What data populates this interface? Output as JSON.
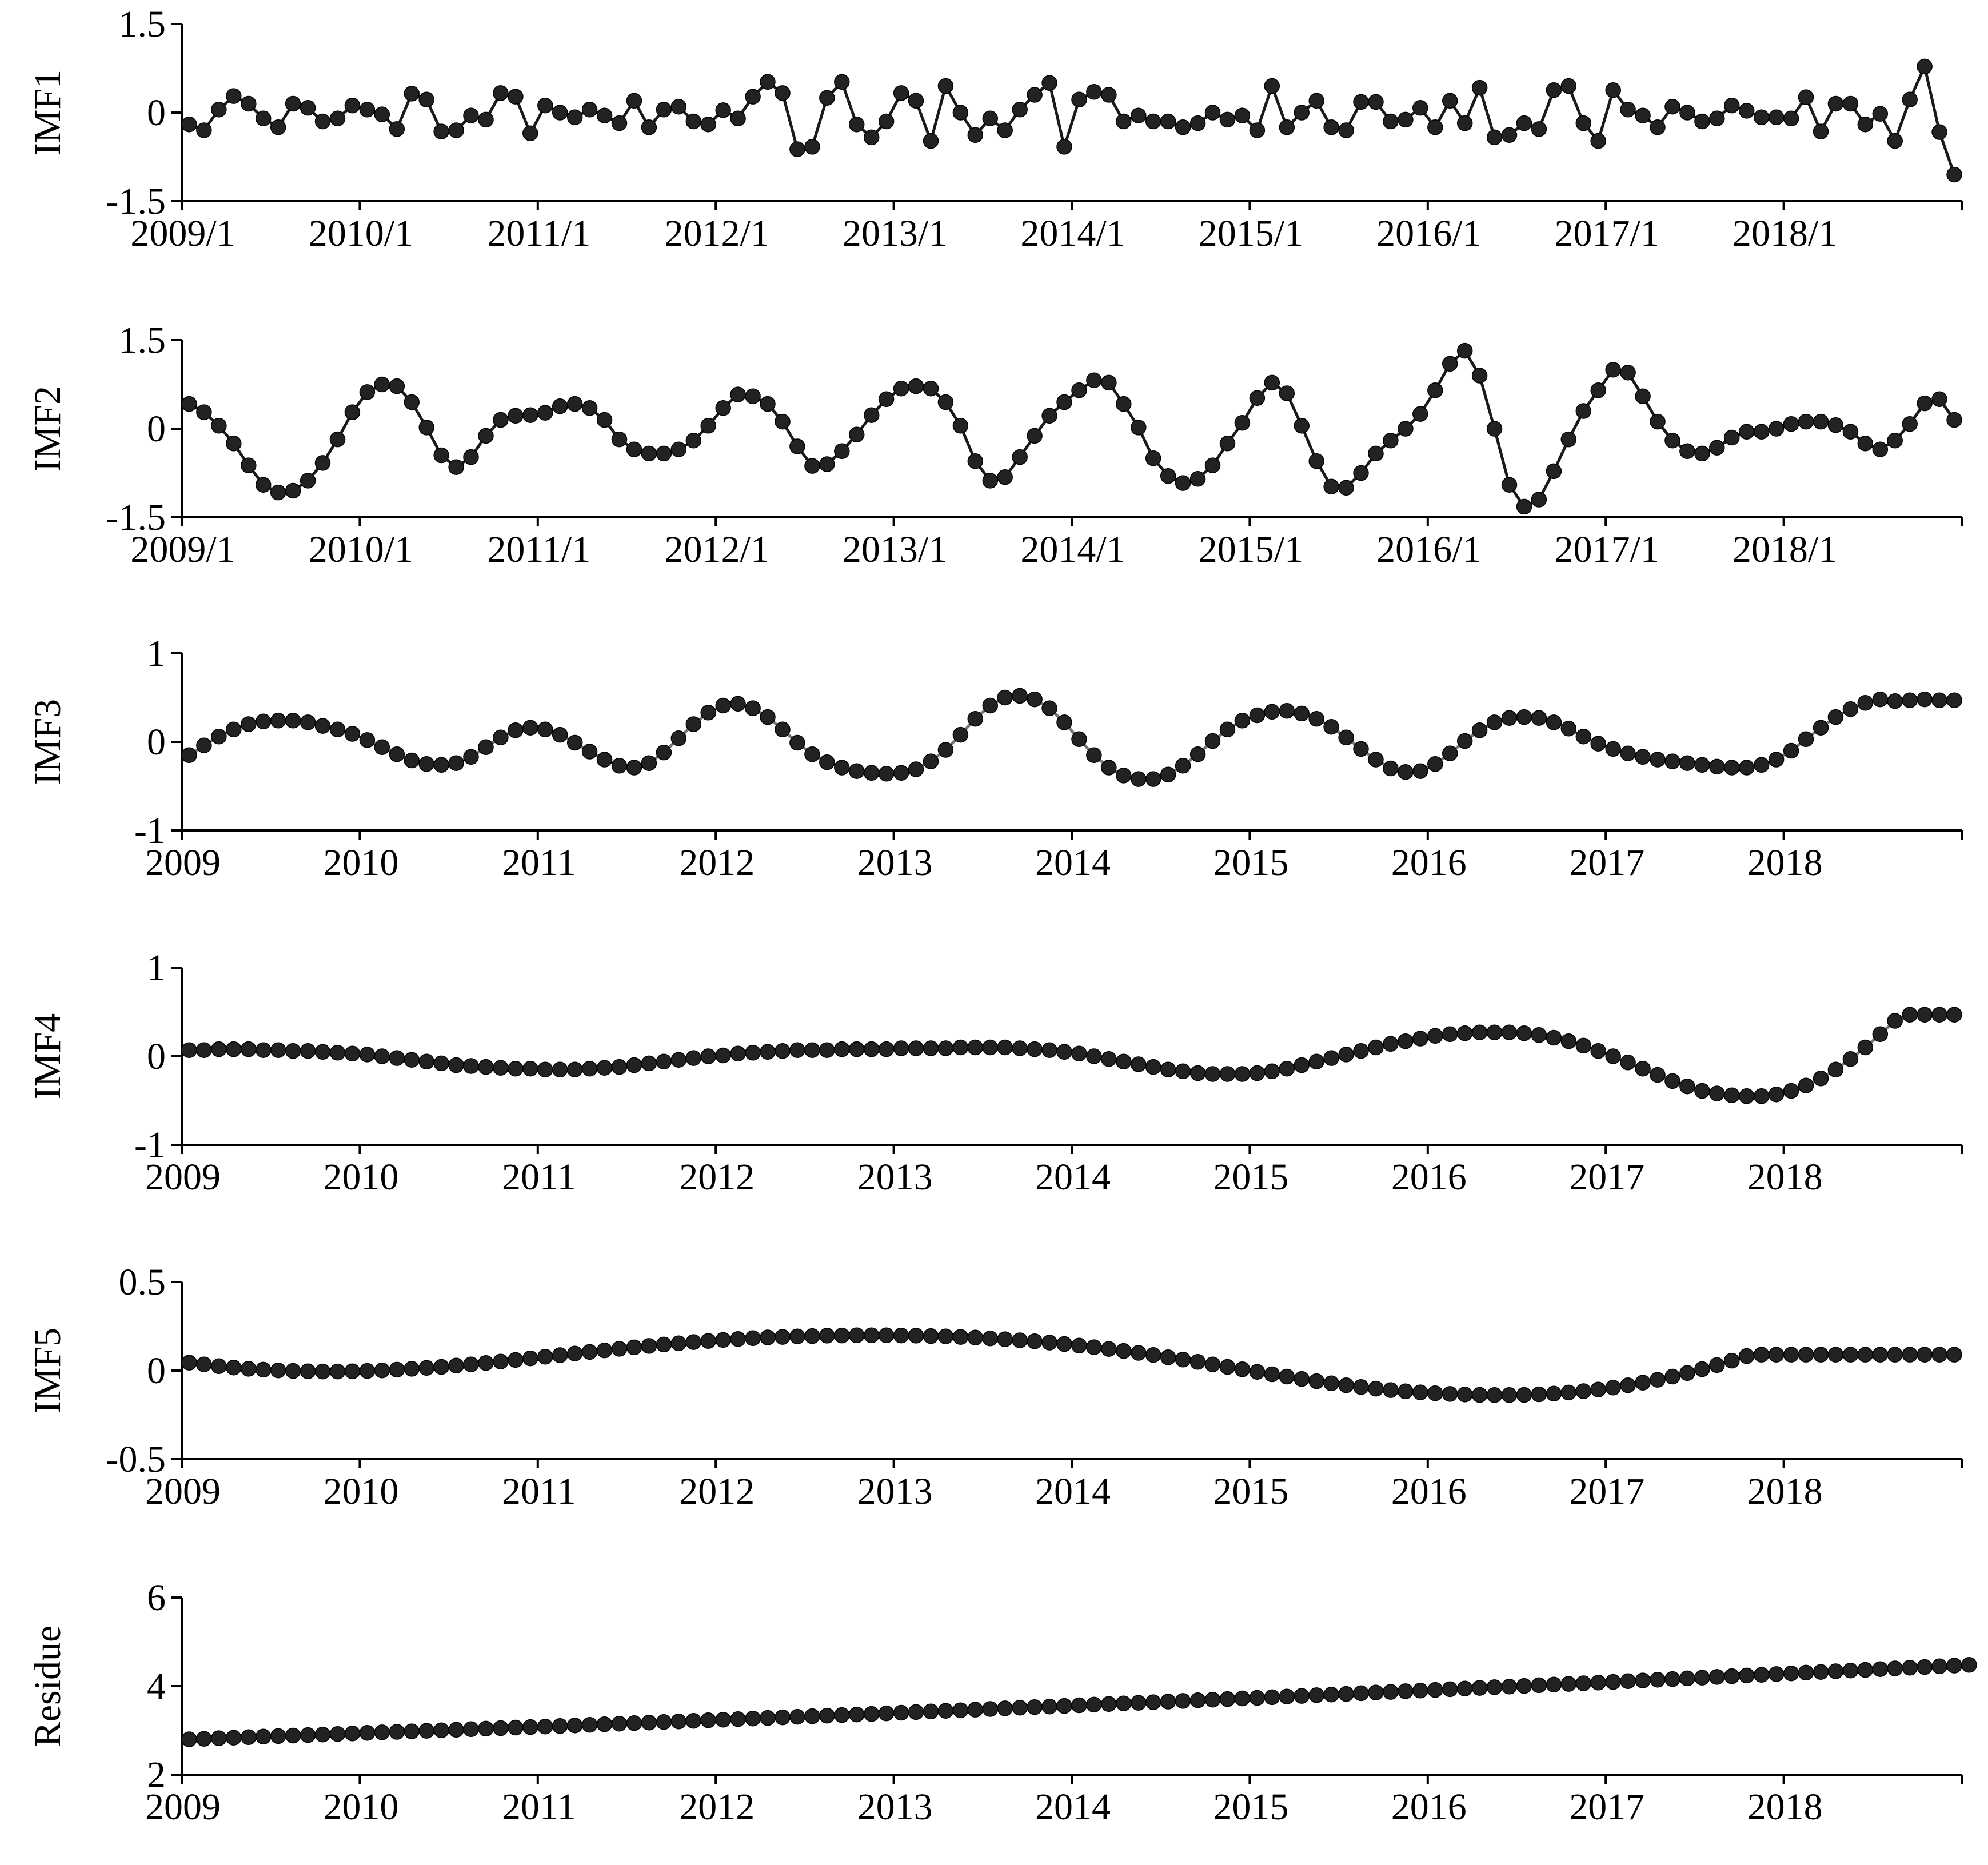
{
  "chart_data": [
    {
      "type": "line",
      "ylabel": "IMF1",
      "ylim": [
        -1.5,
        1.5
      ],
      "yticks": [
        "1.5",
        "0",
        "-1.5"
      ],
      "xticks": [
        "2009/1",
        "2010/1",
        "2011/1",
        "2012/1",
        "2013/1",
        "2014/1",
        "2015/1",
        "2016/1",
        "2017/1",
        "2018/1"
      ],
      "x_start": "2009/1",
      "x_step_months": 1,
      "line": true,
      "values": [
        -0.2,
        -0.3,
        0.05,
        0.28,
        0.15,
        -0.1,
        -0.25,
        0.15,
        0.08,
        -0.15,
        -0.1,
        0.12,
        0.05,
        -0.03,
        -0.28,
        0.32,
        0.22,
        -0.32,
        -0.3,
        -0.05,
        -0.12,
        0.33,
        0.27,
        -0.35,
        0.12,
        0.0,
        -0.08,
        0.05,
        -0.05,
        -0.18,
        0.2,
        -0.25,
        0.05,
        0.1,
        -0.15,
        -0.2,
        0.04,
        -0.1,
        0.27,
        0.52,
        0.33,
        -0.62,
        -0.58,
        0.25,
        0.52,
        -0.2,
        -0.42,
        -0.15,
        0.33,
        0.2,
        -0.48,
        0.45,
        0.0,
        -0.38,
        -0.1,
        -0.3,
        0.05,
        0.3,
        0.5,
        -0.58,
        0.22,
        0.35,
        0.3,
        -0.15,
        -0.05,
        -0.15,
        -0.15,
        -0.25,
        -0.18,
        0.0,
        -0.12,
        -0.05,
        -0.3,
        0.45,
        -0.25,
        0.0,
        0.2,
        -0.25,
        -0.3,
        0.18,
        0.18,
        -0.15,
        -0.12,
        0.08,
        -0.25,
        0.2,
        -0.18,
        0.42,
        -0.42,
        -0.38,
        -0.18,
        -0.28,
        0.38,
        0.45,
        -0.18,
        -0.48,
        0.38,
        0.05,
        -0.05,
        -0.25,
        0.1,
        0.0,
        -0.15,
        -0.1,
        0.12,
        0.03,
        -0.08,
        -0.08,
        -0.1,
        0.26,
        -0.32,
        0.15,
        0.15,
        -0.2,
        -0.02,
        -0.48,
        0.22,
        0.78,
        -0.33,
        -1.05
      ]
    },
    {
      "type": "line",
      "ylabel": "IMF2",
      "ylim": [
        -1.5,
        1.5
      ],
      "yticks": [
        "1.5",
        "0",
        "-1.5"
      ],
      "xticks": [
        "2009/1",
        "2010/1",
        "2011/1",
        "2012/1",
        "2013/1",
        "2014/1",
        "2015/1",
        "2016/1",
        "2017/1",
        "2018/1"
      ],
      "x_start": "2009/1",
      "x_step_months": 1,
      "line": true,
      "values": [
        0.42,
        0.28,
        0.05,
        -0.25,
        -0.62,
        -0.95,
        -1.08,
        -1.05,
        -0.88,
        -0.58,
        -0.18,
        0.28,
        0.62,
        0.75,
        0.72,
        0.45,
        0.02,
        -0.45,
        -0.65,
        -0.48,
        -0.12,
        0.15,
        0.22,
        0.23,
        0.27,
        0.38,
        0.42,
        0.35,
        0.15,
        -0.18,
        -0.35,
        -0.42,
        -0.42,
        -0.35,
        -0.2,
        0.05,
        0.35,
        0.58,
        0.55,
        0.42,
        0.12,
        -0.3,
        -0.63,
        -0.6,
        -0.38,
        -0.1,
        0.23,
        0.5,
        0.68,
        0.72,
        0.68,
        0.45,
        0.05,
        -0.55,
        -0.88,
        -0.82,
        -0.48,
        -0.12,
        0.22,
        0.45,
        0.65,
        0.82,
        0.78,
        0.42,
        0.02,
        -0.5,
        -0.8,
        -0.92,
        -0.85,
        -0.62,
        -0.25,
        0.1,
        0.52,
        0.78,
        0.6,
        0.05,
        -0.55,
        -0.98,
        -1.0,
        -0.75,
        -0.42,
        -0.2,
        0.0,
        0.25,
        0.65,
        1.1,
        1.32,
        0.9,
        0.0,
        -0.95,
        -1.32,
        -1.2,
        -0.72,
        -0.18,
        0.3,
        0.65,
        1.0,
        0.95,
        0.55,
        0.12,
        -0.2,
        -0.38,
        -0.42,
        -0.32,
        -0.15,
        -0.05,
        -0.05,
        0.0,
        0.08,
        0.12,
        0.12,
        0.06,
        -0.05,
        -0.25,
        -0.35,
        -0.2,
        0.08,
        0.43,
        0.5,
        0.15
      ]
    },
    {
      "type": "scatter",
      "ylabel": "IMF3",
      "ylim": [
        -1,
        1
      ],
      "yticks": [
        "1",
        "0",
        "-1"
      ],
      "xticks": [
        "2009",
        "2010",
        "2011",
        "2012",
        "2013",
        "2014",
        "2015",
        "2016",
        "2017",
        "2018"
      ],
      "x_start": "2009/1",
      "x_step_months": 1,
      "line": false,
      "values": [
        -0.15,
        -0.04,
        0.06,
        0.14,
        0.2,
        0.23,
        0.24,
        0.24,
        0.22,
        0.18,
        0.14,
        0.09,
        0.02,
        -0.06,
        -0.14,
        -0.21,
        -0.25,
        -0.26,
        -0.24,
        -0.17,
        -0.06,
        0.05,
        0.13,
        0.16,
        0.14,
        0.08,
        -0.01,
        -0.11,
        -0.2,
        -0.27,
        -0.29,
        -0.24,
        -0.12,
        0.04,
        0.2,
        0.33,
        0.41,
        0.43,
        0.38,
        0.28,
        0.14,
        -0.01,
        -0.14,
        -0.23,
        -0.29,
        -0.33,
        -0.35,
        -0.36,
        -0.35,
        -0.31,
        -0.22,
        -0.09,
        0.08,
        0.26,
        0.41,
        0.5,
        0.52,
        0.48,
        0.38,
        0.22,
        0.03,
        -0.15,
        -0.29,
        -0.38,
        -0.42,
        -0.42,
        -0.37,
        -0.27,
        -0.14,
        0.01,
        0.14,
        0.24,
        0.3,
        0.34,
        0.35,
        0.32,
        0.26,
        0.17,
        0.05,
        -0.08,
        -0.2,
        -0.3,
        -0.34,
        -0.33,
        -0.25,
        -0.13,
        0.01,
        0.13,
        0.22,
        0.27,
        0.28,
        0.27,
        0.22,
        0.15,
        0.06,
        -0.02,
        -0.08,
        -0.13,
        -0.17,
        -0.2,
        -0.22,
        -0.24,
        -0.26,
        -0.28,
        -0.29,
        -0.29,
        -0.26,
        -0.2,
        -0.1,
        0.03,
        0.16,
        0.28,
        0.37,
        0.44,
        0.48,
        0.46,
        0.47,
        0.48,
        0.47,
        0.47
      ]
    },
    {
      "type": "scatter",
      "ylabel": "IMF4",
      "ylim": [
        -1,
        1
      ],
      "yticks": [
        "1",
        "0",
        "-1"
      ],
      "xticks": [
        "2009",
        "2010",
        "2011",
        "2012",
        "2013",
        "2014",
        "2015",
        "2016",
        "2017",
        "2018"
      ],
      "x_start": "2009/1",
      "x_step_months": 1,
      "line": false,
      "values": [
        0.07,
        0.07,
        0.08,
        0.08,
        0.08,
        0.07,
        0.07,
        0.06,
        0.06,
        0.05,
        0.04,
        0.03,
        0.02,
        0.0,
        -0.02,
        -0.04,
        -0.06,
        -0.08,
        -0.1,
        -0.11,
        -0.12,
        -0.13,
        -0.14,
        -0.14,
        -0.15,
        -0.15,
        -0.15,
        -0.14,
        -0.13,
        -0.12,
        -0.1,
        -0.08,
        -0.06,
        -0.04,
        -0.02,
        0.0,
        0.01,
        0.03,
        0.04,
        0.05,
        0.06,
        0.07,
        0.07,
        0.07,
        0.08,
        0.08,
        0.08,
        0.08,
        0.09,
        0.09,
        0.09,
        0.09,
        0.1,
        0.1,
        0.1,
        0.1,
        0.09,
        0.08,
        0.07,
        0.05,
        0.03,
        0.0,
        -0.03,
        -0.06,
        -0.09,
        -0.12,
        -0.15,
        -0.17,
        -0.19,
        -0.2,
        -0.2,
        -0.2,
        -0.19,
        -0.17,
        -0.14,
        -0.1,
        -0.06,
        -0.02,
        0.02,
        0.06,
        0.1,
        0.14,
        0.17,
        0.2,
        0.23,
        0.25,
        0.26,
        0.27,
        0.27,
        0.27,
        0.26,
        0.24,
        0.21,
        0.17,
        0.12,
        0.06,
        -0.0,
        -0.07,
        -0.14,
        -0.21,
        -0.28,
        -0.34,
        -0.39,
        -0.42,
        -0.44,
        -0.45,
        -0.45,
        -0.43,
        -0.39,
        -0.33,
        -0.25,
        -0.15,
        -0.03,
        0.1,
        0.25,
        0.4,
        0.47,
        0.47,
        0.47,
        0.47
      ]
    },
    {
      "type": "scatter",
      "ylabel": "IMF5",
      "ylim": [
        -0.5,
        0.5
      ],
      "yticks": [
        "0.5",
        "0",
        "-0.5"
      ],
      "xticks": [
        "2009",
        "2010",
        "2011",
        "2012",
        "2013",
        "2014",
        "2015",
        "2016",
        "2017",
        "2018"
      ],
      "x_start": "2009/1",
      "x_step_months": 1,
      "line": false,
      "values": [
        0.045,
        0.035,
        0.025,
        0.017,
        0.01,
        0.005,
        0.001,
        -0.002,
        -0.004,
        -0.005,
        -0.005,
        -0.004,
        -0.002,
        0.001,
        0.005,
        0.01,
        0.015,
        0.021,
        0.028,
        0.035,
        0.043,
        0.051,
        0.06,
        0.069,
        0.078,
        0.087,
        0.096,
        0.105,
        0.114,
        0.123,
        0.131,
        0.139,
        0.147,
        0.154,
        0.161,
        0.167,
        0.173,
        0.178,
        0.183,
        0.187,
        0.19,
        0.193,
        0.195,
        0.197,
        0.198,
        0.199,
        0.199,
        0.199,
        0.198,
        0.197,
        0.195,
        0.193,
        0.19,
        0.186,
        0.182,
        0.177,
        0.171,
        0.165,
        0.158,
        0.15,
        0.141,
        0.132,
        0.122,
        0.111,
        0.1,
        0.088,
        0.075,
        0.062,
        0.049,
        0.035,
        0.021,
        0.007,
        -0.007,
        -0.021,
        -0.034,
        -0.047,
        -0.06,
        -0.072,
        -0.083,
        -0.093,
        -0.102,
        -0.11,
        -0.117,
        -0.123,
        -0.128,
        -0.132,
        -0.135,
        -0.137,
        -0.138,
        -0.138,
        -0.137,
        -0.134,
        -0.13,
        -0.124,
        -0.116,
        -0.107,
        -0.096,
        -0.083,
        -0.068,
        -0.052,
        -0.034,
        -0.014,
        0.008,
        0.031,
        0.056,
        0.082,
        0.09,
        0.09,
        0.09,
        0.09,
        0.09,
        0.09,
        0.09,
        0.09,
        0.09,
        0.09,
        0.09,
        0.09,
        0.09,
        0.09
      ]
    },
    {
      "type": "scatter",
      "ylabel": "Residue",
      "ylim": [
        2,
        6
      ],
      "yticks": [
        "6",
        "4",
        "2"
      ],
      "xticks": [
        "2009",
        "2010",
        "2011",
        "2012",
        "2013",
        "2014",
        "2015",
        "2016",
        "2017",
        "2018"
      ],
      "x_start": "2009/1",
      "x_step_months": 1,
      "line": false,
      "values": [
        2.8,
        2.812,
        2.824,
        2.836,
        2.848,
        2.86,
        2.872,
        2.884,
        2.896,
        2.908,
        2.92,
        2.932,
        2.944,
        2.956,
        2.968,
        2.98,
        2.992,
        3.004,
        3.016,
        3.028,
        3.04,
        3.052,
        3.064,
        3.076,
        3.088,
        3.1,
        3.113,
        3.126,
        3.139,
        3.152,
        3.165,
        3.178,
        3.191,
        3.204,
        3.217,
        3.23,
        3.243,
        3.256,
        3.269,
        3.282,
        3.295,
        3.308,
        3.321,
        3.334,
        3.347,
        3.36,
        3.373,
        3.386,
        3.4,
        3.414,
        3.428,
        3.442,
        3.456,
        3.47,
        3.484,
        3.498,
        3.512,
        3.526,
        3.54,
        3.554,
        3.568,
        3.582,
        3.596,
        3.61,
        3.624,
        3.638,
        3.652,
        3.666,
        3.68,
        3.694,
        3.708,
        3.722,
        3.736,
        3.75,
        3.765,
        3.78,
        3.795,
        3.81,
        3.825,
        3.84,
        3.855,
        3.87,
        3.885,
        3.9,
        3.915,
        3.93,
        3.945,
        3.96,
        3.975,
        3.99,
        4.005,
        4.02,
        4.035,
        4.05,
        4.065,
        4.08,
        4.096,
        4.112,
        4.128,
        4.144,
        4.16,
        4.176,
        4.192,
        4.208,
        4.224,
        4.24,
        4.256,
        4.272,
        4.288,
        4.304,
        4.32,
        4.336,
        4.352,
        4.368,
        4.384,
        4.4,
        4.416,
        4.432,
        4.448,
        4.464,
        4.48
      ]
    }
  ]
}
